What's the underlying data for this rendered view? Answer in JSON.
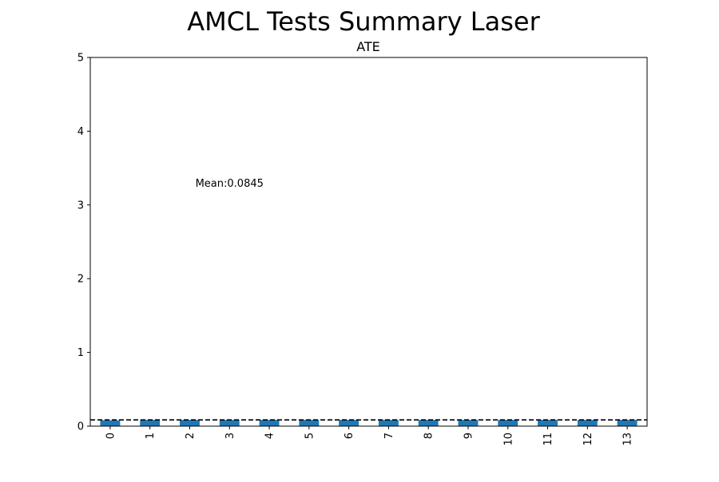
{
  "figure": {
    "suptitle": "AMCL Tests Summary Laser"
  },
  "chart_data": {
    "type": "bar",
    "title": "ATE",
    "xlabel": "",
    "ylabel": "",
    "categories": [
      "0",
      "1",
      "2",
      "3",
      "4",
      "5",
      "6",
      "7",
      "8",
      "9",
      "10",
      "11",
      "12",
      "13"
    ],
    "values": [
      0.08,
      0.085,
      0.085,
      0.085,
      0.085,
      0.085,
      0.085,
      0.085,
      0.085,
      0.085,
      0.085,
      0.085,
      0.085,
      0.085
    ],
    "ylim": [
      0,
      5
    ],
    "yticks": [
      "0",
      "1",
      "2",
      "3",
      "4",
      "5"
    ],
    "bar_color": "#1f77b4",
    "mean_line": {
      "value": 0.0845,
      "style": "dashed",
      "color": "#000000"
    },
    "annotation": {
      "text": "Mean:0.0845",
      "x": 3,
      "y": 3.3
    },
    "grid": false,
    "legend": "none"
  }
}
